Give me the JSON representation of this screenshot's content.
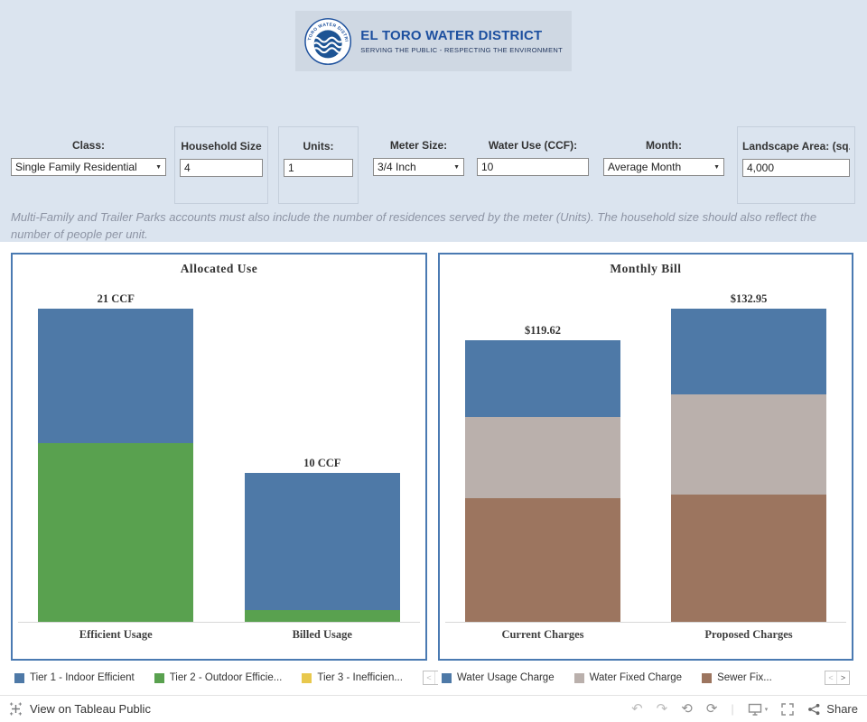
{
  "header": {
    "org_name": "EL TORO WATER DISTRICT",
    "tagline": "SERVING THE PUBLIC - RESPECTING THE ENVIRONMENT",
    "logo_arc_text": "EL TORO WATER DISTRICT"
  },
  "filters": {
    "class": {
      "label": "Class:",
      "value": "Single Family Residential"
    },
    "household_size": {
      "label": "Household Size",
      "value": "4"
    },
    "units": {
      "label": "Units:",
      "value": "1"
    },
    "meter_size": {
      "label": "Meter Size:",
      "value": "3/4 Inch"
    },
    "water_use": {
      "label": "Water Use (CCF):",
      "value": "10"
    },
    "month": {
      "label": "Month:",
      "value": "Average Month"
    },
    "landscape_area": {
      "label": "Landscape Area:  (sq...",
      "value": "4,000"
    }
  },
  "note_line": "Multi-Family and Trailer Parks accounts must also include  the number of residences served by the meter (Units). The household size should also reflect the number of people per unit.",
  "chart_data": [
    {
      "type": "bar",
      "title": "Allocated  Use",
      "categories": [
        "Efficient Usage",
        "Billed Usage"
      ],
      "series": [
        {
          "name": "Tier 1 - Indoor Efficient",
          "color": "#4e79a7",
          "values": [
            9,
            9.2
          ]
        },
        {
          "name": "Tier 2 - Outdoor Efficient",
          "color": "#59a14f",
          "values": [
            12,
            0.8
          ]
        }
      ],
      "stack_order": "first series on top",
      "totals": [
        21,
        10
      ],
      "totals_labels": [
        "21 CCF",
        "10 CCF"
      ],
      "unit": "CCF",
      "ylim": [
        0,
        21
      ],
      "grid": false,
      "legend_position": "bottom",
      "legend": [
        {
          "label": "Tier 1 - Indoor Efficient",
          "color": "#4e79a7"
        },
        {
          "label": "Tier 2 - Outdoor Efficie...",
          "color": "#59a14f"
        },
        {
          "label": "Tier 3 - Inefficien...",
          "color": "#e8c84d"
        }
      ]
    },
    {
      "type": "bar",
      "title": "Monthly  Bill",
      "categories": [
        "Current Charges",
        "Proposed Charges"
      ],
      "series": [
        {
          "name": "Water Usage Charge",
          "color": "#4e79a7",
          "values": [
            32.6,
            36.4
          ]
        },
        {
          "name": "Water Fixed Charge",
          "color": "#bab0ac",
          "values": [
            34.5,
            42.5
          ]
        },
        {
          "name": "Sewer Fixed Charge",
          "color": "#9c755f",
          "values": [
            52.52,
            54.05
          ]
        }
      ],
      "stack_order": "first series on top",
      "totals": [
        119.62,
        132.95
      ],
      "totals_labels": [
        "$119.62",
        "$132.95"
      ],
      "unit": "USD",
      "ylim": [
        0,
        132.95
      ],
      "grid": false,
      "legend_position": "bottom",
      "legend": [
        {
          "label": "Water Usage Charge",
          "color": "#4e79a7"
        },
        {
          "label": "Water Fixed Charge",
          "color": "#bab0ac"
        },
        {
          "label": "Sewer Fix...",
          "color": "#9c755f"
        }
      ]
    }
  ],
  "ui": {
    "pager_prev": "<",
    "pager_next": ">",
    "icons": {
      "undo": "↶",
      "redo": "↷",
      "reset": "⟲",
      "refresh": "⟳",
      "dropdown_caret": "▼",
      "mini_caret": "▾",
      "separator": "|"
    }
  },
  "footer": {
    "view_text": "View on Tableau Public",
    "share_label": "Share"
  },
  "colors": {
    "top_bg": "#dbe4ef",
    "panel_border": "#4a7ab2",
    "bar_blue": "#4e79a7",
    "bar_green": "#59a14f",
    "bar_yellow": "#e8c84d",
    "bar_gray": "#bab0ac",
    "bar_brown": "#9c755f"
  }
}
